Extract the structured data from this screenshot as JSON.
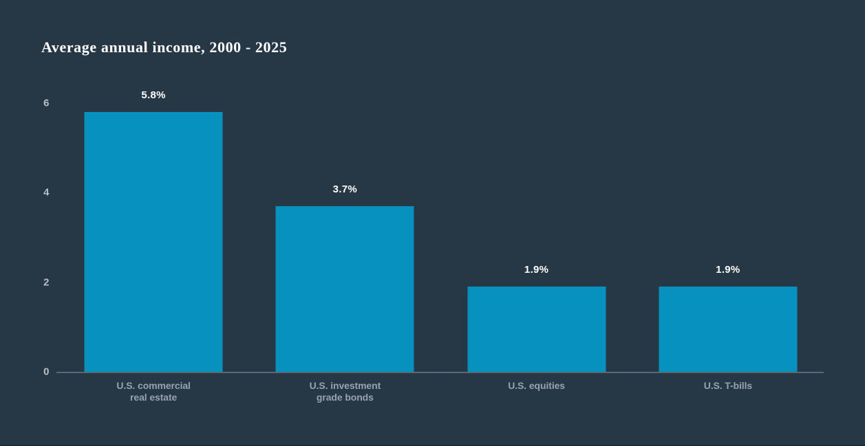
{
  "chart_data": {
    "type": "bar",
    "title": "Average annual income, 2000 - 2025",
    "categories": [
      "U.S. commercial real estate",
      "U.S. investment grade bonds",
      "U.S. equities",
      "U.S. T-bills"
    ],
    "category_label_lines": [
      [
        "U.S. commercial",
        "real estate"
      ],
      [
        "U.S. investment",
        "grade bonds"
      ],
      [
        "U.S. equities"
      ],
      [
        "U.S. T-bills"
      ]
    ],
    "values": [
      5.8,
      3.7,
      1.9,
      1.9
    ],
    "value_labels": [
      "5.8%",
      "3.7%",
      "1.9%",
      "1.9%"
    ],
    "xlabel": "",
    "ylabel": "",
    "ylim": [
      0,
      6
    ],
    "yticks": [
      0,
      2,
      4,
      6
    ],
    "grid": false,
    "legend": null,
    "colors": {
      "background": "#263746",
      "bar": "#0691be",
      "title": "#ffffff",
      "value_labels": "#ffffff",
      "axis_ticks": "#b9c0c6",
      "category_labels": "#98a3ad",
      "baseline": "#5c6974",
      "bottom_edge": "#1d2b37"
    }
  }
}
